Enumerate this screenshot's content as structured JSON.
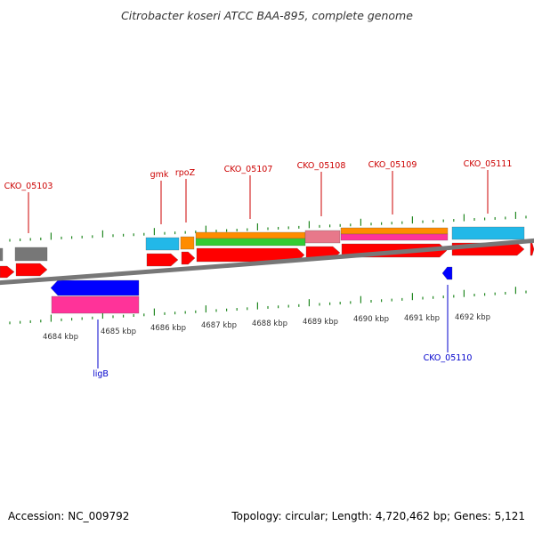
{
  "title": "Citrobacter koseri ATCC BAA-895, complete genome",
  "footer": {
    "accession": "Accession: NC_009792",
    "summary": "Topology: circular; Length: 4,720,462 bp; Genes: 5,121"
  },
  "colors": {
    "red": "#ff0000",
    "blue": "#0000ff",
    "pink": "#ff3399",
    "cyan": "#22b8e8",
    "orange": "#ff8c00",
    "green": "#33cc33",
    "salmon": "#e8788a",
    "gray": "#777777",
    "tick": "#228822",
    "label_forward": "#cc0000",
    "label_reverse": "#0000cc",
    "backbone": "#777777"
  },
  "scale_labels": [
    "4684 kbp",
    "4685 kbp",
    "4686 kbp",
    "4687 kbp",
    "4688 kbp",
    "4689 kbp",
    "4690 kbp",
    "4691 kbp",
    "4692 kbp"
  ],
  "gene_labels": [
    {
      "name": "CKO_05103",
      "strand": "forward"
    },
    {
      "name": "gmk",
      "strand": "forward"
    },
    {
      "name": "rpoZ",
      "strand": "forward"
    },
    {
      "name": "CKO_05107",
      "strand": "forward"
    },
    {
      "name": "CKO_05108",
      "strand": "forward"
    },
    {
      "name": "CKO_05109",
      "strand": "forward"
    },
    {
      "name": "CKO_05111",
      "strand": "forward"
    },
    {
      "name": "ligB",
      "strand": "reverse"
    },
    {
      "name": "CKO_05110",
      "strand": "reverse"
    }
  ]
}
